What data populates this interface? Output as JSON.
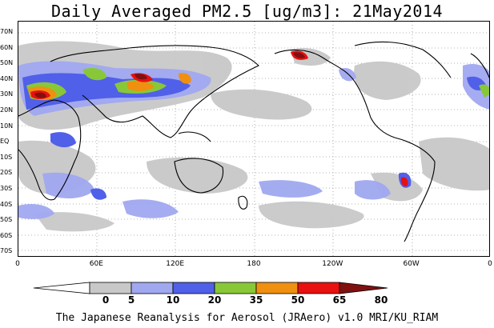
{
  "title": "Daily Averaged PM2.5 [ug/m3]: 21May2014",
  "footer": "The Japanese Reanalysis for Aerosol (JRAero) v1.0 MRI/KU_RIAM",
  "lat_labels": [
    "70N",
    "60N",
    "50N",
    "40N",
    "30N",
    "20N",
    "10N",
    "EQ",
    "10S",
    "20S",
    "30S",
    "40S",
    "50S",
    "60S",
    "70S"
  ],
  "lon_labels": [
    "0",
    "60E",
    "120E",
    "180",
    "120W",
    "60W",
    "0"
  ],
  "colorbar": {
    "ticks": [
      "0",
      "5",
      "10",
      "20",
      "35",
      "50",
      "65",
      "80"
    ],
    "colors": [
      "#ffffff",
      "#c8c8c8",
      "#a0a8f0",
      "#5060e8",
      "#88c838",
      "#f09010",
      "#e81010",
      "#801010"
    ]
  }
}
